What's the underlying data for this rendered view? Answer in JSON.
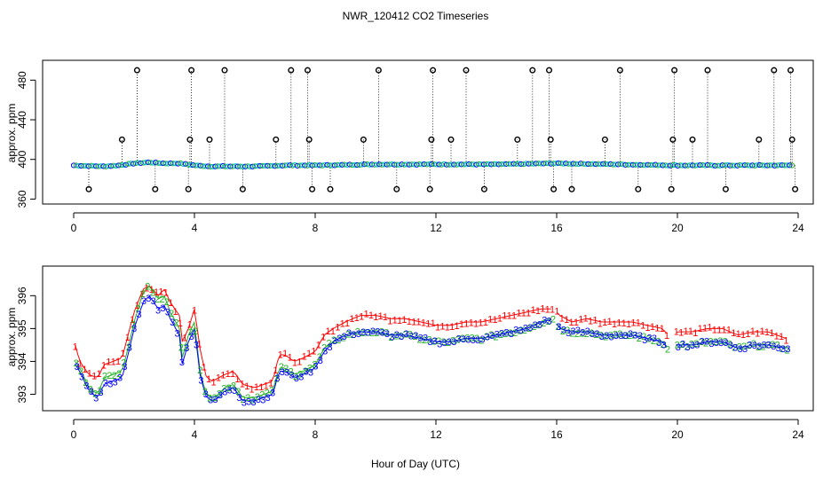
{
  "title": "NWR_120412  CO2 Timeseries",
  "xlabel": "Hour of Day (UTC)",
  "colors": {
    "red": "#ff0000",
    "green": "#22b022",
    "blue": "#0000ff",
    "cyan": "#00cccc",
    "black": "#000000"
  },
  "chart_data": [
    {
      "type": "scatter",
      "panel": "top",
      "ylabel": "approx. ppm",
      "xlim": [
        0,
        24
      ],
      "ylim": [
        355,
        500
      ],
      "xticks": [
        0,
        4,
        8,
        12,
        16,
        20,
        24
      ],
      "yticks": [
        360,
        400,
        440,
        480
      ],
      "baseline": {
        "x": [
          0,
          1,
          1.5,
          2,
          2.5,
          3,
          3.5,
          4,
          4.5,
          5,
          6,
          7,
          8,
          10,
          12,
          14,
          16,
          18,
          20,
          22,
          23.8
        ],
        "y": [
          394,
          393,
          394,
          396,
          397,
          396,
          396,
          394,
          393,
          393,
          393,
          394,
          394,
          395,
          395,
          395,
          396,
          395,
          394,
          394,
          394
        ]
      },
      "outliers": [
        {
          "x": 0.5,
          "y": 370
        },
        {
          "x": 1.6,
          "y": 420
        },
        {
          "x": 2.1,
          "y": 490
        },
        {
          "x": 2.7,
          "y": 370
        },
        {
          "x": 3.8,
          "y": 370
        },
        {
          "x": 3.85,
          "y": 420
        },
        {
          "x": 3.9,
          "y": 490
        },
        {
          "x": 4.5,
          "y": 420
        },
        {
          "x": 5.0,
          "y": 490
        },
        {
          "x": 5.6,
          "y": 370
        },
        {
          "x": 6.7,
          "y": 420
        },
        {
          "x": 7.2,
          "y": 490
        },
        {
          "x": 7.75,
          "y": 490
        },
        {
          "x": 7.8,
          "y": 420
        },
        {
          "x": 7.9,
          "y": 370
        },
        {
          "x": 8.5,
          "y": 370
        },
        {
          "x": 9.6,
          "y": 420
        },
        {
          "x": 10.1,
          "y": 490
        },
        {
          "x": 10.7,
          "y": 370
        },
        {
          "x": 11.8,
          "y": 370
        },
        {
          "x": 11.85,
          "y": 420
        },
        {
          "x": 11.9,
          "y": 490
        },
        {
          "x": 12.5,
          "y": 420
        },
        {
          "x": 13.0,
          "y": 490
        },
        {
          "x": 13.6,
          "y": 370
        },
        {
          "x": 14.7,
          "y": 420
        },
        {
          "x": 15.2,
          "y": 490
        },
        {
          "x": 15.75,
          "y": 490
        },
        {
          "x": 15.8,
          "y": 420
        },
        {
          "x": 15.9,
          "y": 370
        },
        {
          "x": 16.5,
          "y": 370
        },
        {
          "x": 17.6,
          "y": 420
        },
        {
          "x": 18.1,
          "y": 490
        },
        {
          "x": 18.7,
          "y": 370
        },
        {
          "x": 19.8,
          "y": 370
        },
        {
          "x": 19.85,
          "y": 420
        },
        {
          "x": 19.9,
          "y": 490
        },
        {
          "x": 20.5,
          "y": 420
        },
        {
          "x": 21.0,
          "y": 490
        },
        {
          "x": 21.6,
          "y": 370
        },
        {
          "x": 22.7,
          "y": 420
        },
        {
          "x": 23.2,
          "y": 490
        },
        {
          "x": 23.75,
          "y": 490
        },
        {
          "x": 23.8,
          "y": 420
        },
        {
          "x": 23.9,
          "y": 370
        }
      ]
    },
    {
      "type": "line",
      "panel": "bottom",
      "ylabel": "approx. ppm",
      "xlim": [
        0,
        24
      ],
      "ylim": [
        392.5,
        396.9
      ],
      "xticks": [
        0,
        4,
        8,
        12,
        16,
        20,
        24
      ],
      "yticks": [
        393,
        394,
        395,
        396
      ],
      "gaps": [
        [
          15.9,
          16.0
        ],
        [
          19.7,
          19.9
        ]
      ],
      "profile": {
        "x": [
          0.05,
          0.2,
          0.5,
          0.8,
          1.0,
          1.3,
          1.6,
          1.8,
          2.0,
          2.3,
          2.5,
          2.8,
          3.0,
          3.2,
          3.5,
          3.6,
          3.8,
          4.0,
          4.2,
          4.4,
          4.6,
          4.8,
          5.0,
          5.3,
          5.6,
          6.0,
          6.3,
          6.6,
          6.8,
          7.0,
          7.3,
          7.6,
          8.0,
          8.3,
          8.6,
          9.0,
          9.5,
          10.0,
          10.5,
          11.0,
          11.5,
          12.0,
          12.5,
          13.0,
          13.5,
          14.0,
          14.5,
          15.0,
          15.5,
          15.9,
          16.1,
          16.5,
          17.0,
          17.5,
          18.0,
          18.5,
          19.0,
          19.5,
          19.7,
          20.0,
          20.5,
          21.0,
          21.5,
          22.0,
          22.5,
          23.0,
          23.6
        ],
        "series": [
          {
            "name": "1",
            "values": [
              394.5,
              394.0,
              393.6,
              393.5,
              393.9,
              394.0,
              394.1,
              394.8,
              395.5,
              396.2,
              396.3,
              396.0,
              396.2,
              395.8,
              395.4,
              394.6,
              395.0,
              395.6,
              394.3,
              393.5,
              393.4,
              393.5,
              393.6,
              393.7,
              393.3,
              393.2,
              393.3,
              393.4,
              394.2,
              394.2,
              394.0,
              394.1,
              394.3,
              394.8,
              395.0,
              395.2,
              395.4,
              395.4,
              395.3,
              395.3,
              395.2,
              395.1,
              395.1,
              395.2,
              395.2,
              395.3,
              395.4,
              395.5,
              395.6,
              395.6,
              395.4,
              395.2,
              395.3,
              395.2,
              395.2,
              395.2,
              395.1,
              395.0,
              394.8,
              394.9,
              394.9,
              395.0,
              395.0,
              394.8,
              394.9,
              394.9,
              394.7
            ]
          },
          {
            "name": "2",
            "values": [
              394.0,
              393.8,
              393.2,
              393.0,
              393.5,
              393.6,
              393.7,
              394.4,
              395.2,
              396.1,
              396.3,
              395.9,
              396.0,
              395.5,
              395.0,
              394.1,
              394.8,
              395.2,
              393.6,
              393.0,
              392.9,
              393.0,
              393.2,
              393.3,
              392.9,
              392.9,
              393.0,
              393.1,
              393.8,
              393.8,
              393.6,
              393.7,
              393.9,
              394.4,
              394.6,
              394.8,
              394.9,
              394.9,
              394.8,
              394.8,
              394.7,
              394.6,
              394.6,
              394.7,
              394.7,
              394.8,
              394.9,
              395.0,
              395.2,
              395.3,
              395.0,
              394.9,
              394.9,
              394.8,
              394.8,
              394.8,
              394.7,
              394.6,
              394.4,
              394.5,
              394.5,
              394.6,
              394.6,
              394.4,
              394.5,
              394.5,
              394.4
            ]
          },
          {
            "name": "3",
            "values": [
              393.9,
              393.7,
              393.1,
              392.9,
              393.3,
              393.4,
              393.5,
              394.2,
              395.0,
              395.8,
              396.0,
              395.6,
              395.7,
              395.3,
              394.8,
              393.9,
              394.6,
              395.0,
              393.5,
              392.9,
              392.8,
              392.9,
              393.1,
              393.2,
              392.8,
              392.8,
              392.9,
              393.0,
              393.7,
              393.7,
              393.5,
              393.6,
              393.8,
              394.3,
              394.6,
              394.8,
              394.9,
              394.9,
              394.8,
              394.8,
              394.7,
              394.6,
              394.6,
              394.7,
              394.7,
              394.8,
              394.9,
              395.0,
              395.2,
              395.3,
              395.0,
              394.9,
              394.9,
              394.8,
              394.8,
              394.8,
              394.7,
              394.6,
              394.4,
              394.5,
              394.5,
              394.6,
              394.6,
              394.4,
              394.5,
              394.5,
              394.4
            ]
          }
        ]
      }
    }
  ]
}
